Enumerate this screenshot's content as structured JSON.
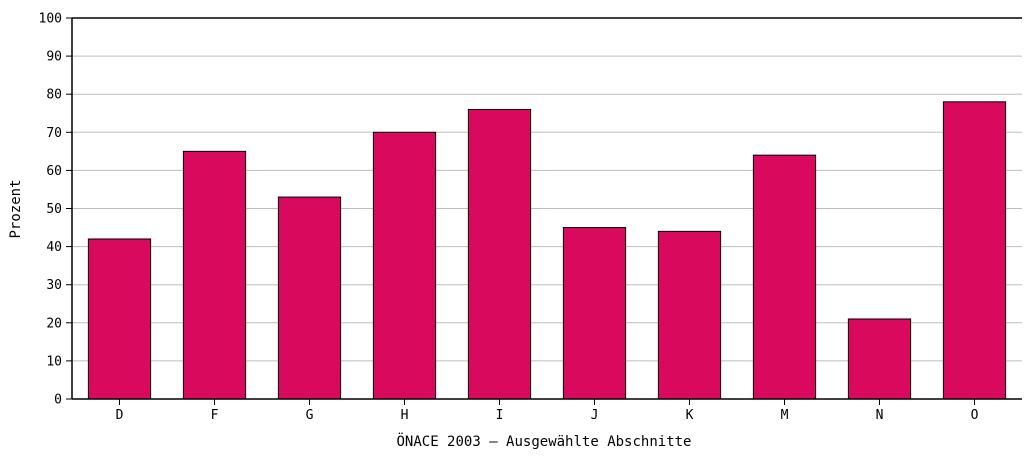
{
  "chart_data": {
    "type": "bar",
    "categories": [
      "D",
      "F",
      "G",
      "H",
      "I",
      "J",
      "K",
      "M",
      "N",
      "O"
    ],
    "values": [
      42,
      65,
      53,
      70,
      76,
      45,
      44,
      64,
      21,
      78
    ],
    "title": "",
    "xlabel": "ÖNACE 2003 – Ausgewählte Abschnitte",
    "ylabel": "Prozent",
    "ylim": [
      0,
      100
    ],
    "yticks": [
      0,
      10,
      20,
      30,
      40,
      50,
      60,
      70,
      80,
      90,
      100
    ],
    "grid": true,
    "legend": "none",
    "bar_color": "#d90a5e",
    "gridline_color": "#bdbdbd",
    "axis_color": "#000000"
  }
}
